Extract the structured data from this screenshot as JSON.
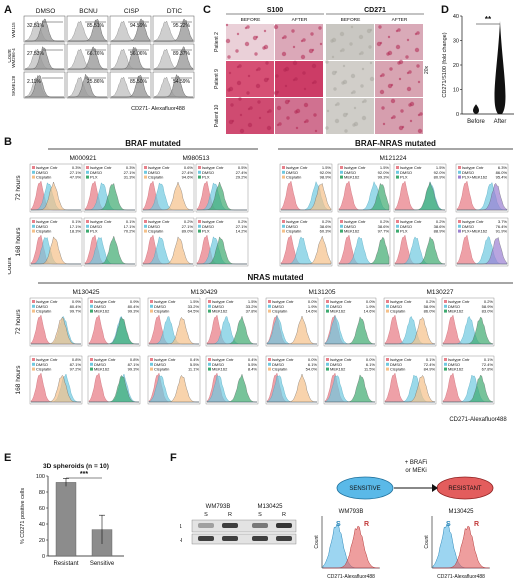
{
  "panels": {
    "A": {
      "label": "A",
      "columns": [
        "DMSO",
        "BCNU",
        "CISP",
        "DTIC"
      ],
      "rows": [
        {
          "name": "WM115",
          "values": [
            "32.51%",
            "85.51%",
            "94.59%",
            "95.22%"
          ]
        },
        {
          "name": "WM266-4",
          "values": [
            "27.53%",
            "66.76%",
            "56.06%",
            "89.37%"
          ]
        },
        {
          "name": "SKMEL28",
          "values": [
            "2.11%",
            "25.86%",
            "85.50%",
            "54.59%"
          ]
        }
      ],
      "ylabel": "Count",
      "xlabel": "CD271- Alexafluor488"
    },
    "C": {
      "label": "C",
      "groups": [
        "S100",
        "CD271"
      ],
      "subheaders": [
        "BEFORE",
        "AFTER",
        "BEFORE",
        "AFTER"
      ],
      "patients": [
        "Patient 2",
        "Patient 9",
        "Patient 10"
      ],
      "magnification": "20x"
    },
    "D": {
      "label": "D",
      "ylabel": "CD271/S100 (fold change)",
      "categories": [
        "Before",
        "After"
      ],
      "significance": "**",
      "yticks": [
        "0",
        "10",
        "20",
        "30",
        "40"
      ]
    },
    "B": {
      "label": "B",
      "ylabel": "Count",
      "xlabel": "CD271-Alexafluor488",
      "time_labels": [
        "72 hours",
        "168 hours"
      ],
      "groups": [
        {
          "title": "BRAF mutated",
          "lines": [
            "M000921",
            "M980513"
          ]
        },
        {
          "title": "BRAF-NRAS mutated",
          "lines": [
            "M121224"
          ]
        },
        {
          "title": "NRAS mutated",
          "lines": [
            "M130425",
            "M130429",
            "M131205",
            "M130227"
          ]
        }
      ],
      "legends": {
        "M000921_72_a": [
          "Isotype Cntr 0.3%",
          "DMSO 27.1%",
          "Cisplatin 47.9%"
        ],
        "M000921_72_b": [
          "Isotype Cntr 0.3%",
          "DMSO 27.1%",
          "PLX 31.3%"
        ],
        "M980513_72_a": [
          "Isotype Cntr 0.6%",
          "DMSO 27.4%",
          "Cisplatin 94.6%"
        ],
        "M980513_72_b": [
          "Isotype Cntr 0.5%",
          "DMSO 27.4%",
          "PLX 29.2%"
        ],
        "M121224_72_a": [
          "Isotype Cntr 1.5%",
          "DMSO 92.0%",
          "Cisplatin 98.9%"
        ],
        "M121224_72_b": [
          "Isotype Cntr 1.5%",
          "DMSO 92.0%",
          "MEK162 99.3%"
        ],
        "M121224_72_c": [
          "Isotype Cntr 1.5%",
          "DMSO 92.0%",
          "PLX 80.9%"
        ],
        "M121224_72_d": [
          "Isotype Cntr 6.3%",
          "DMSO 86.0%",
          "PLX+MEK162 95.4%"
        ],
        "M000921_168_a": [
          "Isotype Cntr 0.1%",
          "DMSO 17.1%",
          "Cisplatin 18.3%"
        ],
        "M000921_168_b": [
          "Isotype Cntr 0.1%",
          "DMSO 17.1%",
          "PLX 70.2%"
        ],
        "M980513_168_a": [
          "Isotype Cntr 0.2%",
          "DMSO 27.1%",
          "Cisplatin 89.0%"
        ],
        "M980513_168_b": [
          "Isotype Cntr 0.2%",
          "DMSO 27.1%",
          "PLX 14.2%"
        ],
        "M121224_168_a": [
          "Isotype Cntr 0.2%",
          "DMSO 38.6%",
          "Cisplatin 60.3%"
        ],
        "M121224_168_b": [
          "Isotype Cntr 0.2%",
          "DMSO 38.6%",
          "MEK162 97.7%"
        ],
        "M121224_168_c": [
          "Isotype Cntr 0.2%",
          "DMSO 38.6%",
          "PLX 88.9%"
        ],
        "M121224_168_d": [
          "Isotype Cntr 3.7%",
          "DMSO 76.4%",
          "PLX+MEK162 91.9%"
        ],
        "M130425_72_a": [
          "Isotype Cntr 0.9%",
          "DMSO 80.4%",
          "Cisplatin 99.7%"
        ],
        "M130425_72_b": [
          "Isotype Cntr 0.9%",
          "DMSO 80.4%",
          "MEK162 99.3%"
        ],
        "M130429_72_a": [
          "Isotype Cntr 1.5%",
          "DMSO 33.2%",
          "Cisplatin 64.5%"
        ],
        "M130429_72_b": [
          "Isotype Cntr 1.5%",
          "DMSO 33.2%",
          "MEK162 37.8%"
        ],
        "M131205_72_a": [
          "Isotype Cntr 0.0%",
          "DMSO 1.9%",
          "Cisplatin 14.6%"
        ],
        "M131205_72_b": [
          "Isotype Cntr 0.0%",
          "DMSO 1.9%",
          "MEK162 14.6%"
        ],
        "M130227_72_a": [
          "Isotype Cntr 0.2%",
          "DMSO 58.9%",
          "Cisplatin 86.0%"
        ],
        "M130227_72_b": [
          "Isotype Cntr 0.2%",
          "DMSO 58.9%",
          "MEK162 83.0%"
        ],
        "M130425_168_a": [
          "Isotype Cntr 0.8%",
          "DMSO 87.1%",
          "Cisplatin 97.2%"
        ],
        "M130425_168_b": [
          "Isotype Cntr 0.8%",
          "DMSO 87.1%",
          "MEK162 99.3%"
        ],
        "M130429_168_a": [
          "Isotype Cntr 0.4%",
          "DMSO 5.5%",
          "Cisplatin 11.1%"
        ],
        "M130429_168_b": [
          "Isotype Cntr 0.4%",
          "DMSO 5.5%",
          "MEK162 8.4%"
        ],
        "M131205_168_a": [
          "Isotype Cntr 0.0%",
          "DMSO 6.1%",
          "Cisplatin 54.0%"
        ],
        "M131205_168_b": [
          "Isotype Cntr 0.0%",
          "DMSO 6.1%",
          "MEK162 11.5%"
        ],
        "M130227_168_a": [
          "Isotype Cntr 0.1%",
          "DMSO 72.4%",
          "Cisplatin 84.9%"
        ],
        "M130227_168_b": [
          "Isotype Cntr 0.1%",
          "DMSO 72.4%",
          "MEK162 67.8%"
        ]
      }
    },
    "E": {
      "label": "E",
      "title": "3D spheroids (n = 10)",
      "ylabel": "% CD271 positive cells",
      "significance": "***",
      "yticks": [
        "0",
        "20",
        "40",
        "60",
        "80",
        "100"
      ]
    },
    "F": {
      "label": "F",
      "sensitive": "SENSITIVE",
      "resistant": "RESISTANT",
      "treatment": "+ BRAFi\nor MEKi",
      "treatment_line1": "+ BRAFi",
      "treatment_line2": "or MEKi",
      "blot_lines": [
        "WM793B",
        "M130425"
      ],
      "blot_lanes": [
        "S",
        "R",
        "S",
        "R"
      ],
      "blot_rows": [
        "CD271",
        "GAPDH"
      ],
      "hist_titles": [
        "WM793B",
        "M130425"
      ],
      "hist_xlabel": "CD271-Alexafluor488",
      "hist_ylabel": "Count",
      "hist_marks": [
        "S",
        "R"
      ]
    }
  },
  "chart_data": [
    {
      "type": "bar",
      "title": "3D spheroids (n = 10)",
      "categories": [
        "Resistant",
        "Sensitive"
      ],
      "values": [
        92,
        33
      ],
      "errors": [
        5,
        18
      ],
      "ylabel": "% CD271 positive cells",
      "ylim": [
        0,
        100
      ]
    },
    {
      "type": "violin",
      "categories": [
        "Before",
        "After"
      ],
      "ylabel": "CD271/S100 (fold change)",
      "ylim": [
        0,
        40
      ]
    }
  ],
  "colors": {
    "isotype": "#e8808a",
    "dmso": "#6fc9e0",
    "cisplatin": "#f5c089",
    "plx": "#3daa6f",
    "mek": "#3daa6f",
    "combo": "#9a7fd1",
    "purple": "#6a3a8c",
    "gray_hist": "#9e9e9e",
    "sensitive_blue": "#5ab9e8",
    "resistant_red": "#e35d5d"
  }
}
